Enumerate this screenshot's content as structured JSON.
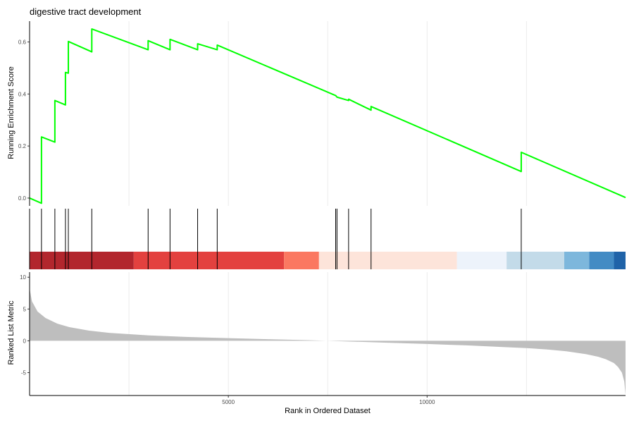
{
  "chart_data": {
    "type": "line",
    "title": "digestive tract development",
    "xlabel": "Rank in Ordered Dataset",
    "x_range": [
      0,
      14992
    ],
    "x_ticks": [
      5000,
      10000
    ],
    "x_tick_labels": [
      "5000",
      "10000"
    ],
    "running_es": {
      "ylabel": "Running Enrichment Score",
      "ylim": [
        -0.03,
        0.68
      ],
      "y_ticks": [
        0.0,
        0.2,
        0.4,
        0.6
      ],
      "y_tick_labels": [
        "0.0",
        "0.2",
        "0.4",
        "0.6"
      ],
      "color": "#00ff00",
      "x": [
        0,
        299,
        299,
        636,
        636,
        902,
        902,
        975,
        975,
        1565,
        1565,
        2982,
        2982,
        3533,
        3533,
        4227,
        4227,
        4720,
        4720,
        7700,
        7700,
        7733,
        7733,
        8025,
        8025,
        8590,
        8590,
        12368,
        12368,
        14992
      ],
      "y": [
        0.0,
        -0.02,
        0.235,
        0.215,
        0.375,
        0.358,
        0.483,
        0.48,
        0.602,
        0.562,
        0.65,
        0.57,
        0.605,
        0.57,
        0.61,
        0.57,
        0.593,
        0.57,
        0.588,
        0.394,
        0.394,
        0.388,
        0.388,
        0.375,
        0.38,
        0.338,
        0.352,
        0.102,
        0.176,
        0.002
      ]
    },
    "gene_hits": [
      299,
      636,
      902,
      975,
      1565,
      2982,
      3533,
      4227,
      4720,
      7700,
      7733,
      8025,
      8590,
      12368
    ],
    "rank_color_bands": [
      {
        "from": 0,
        "to": 2620,
        "color": "#b2262d"
      },
      {
        "from": 2620,
        "to": 6400,
        "color": "#e3413f"
      },
      {
        "from": 6400,
        "to": 7280,
        "color": "#fb7861"
      },
      {
        "from": 7280,
        "to": 10750,
        "color": "#fde4da"
      },
      {
        "from": 10750,
        "to": 12000,
        "color": "#edf3fb"
      },
      {
        "from": 12000,
        "to": 13450,
        "color": "#c3dbe9"
      },
      {
        "from": 13450,
        "to": 14080,
        "color": "#7db7dc"
      },
      {
        "from": 14080,
        "to": 14700,
        "color": "#438bc4"
      },
      {
        "from": 14700,
        "to": 14992,
        "color": "#2063a8"
      }
    ],
    "ranked_metric": {
      "ylabel": "Ranked List Metric",
      "ylim": [
        -8.6,
        10.8
      ],
      "y_ticks": [
        -5,
        0,
        5,
        10
      ],
      "y_tick_labels": [
        "-5",
        "0",
        "5",
        "10"
      ],
      "fill_color": "#bebebe",
      "x": [
        0,
        60,
        200,
        400,
        700,
        1000,
        1500,
        2000,
        3000,
        4000,
        5000,
        6000,
        7000,
        7400,
        7600,
        8000,
        9000,
        10000,
        11000,
        12000,
        12500,
        13000,
        13500,
        14000,
        14300,
        14500,
        14700,
        14800,
        14900,
        14960,
        14992
      ],
      "y": [
        8.2,
        6.2,
        4.6,
        3.6,
        2.7,
        2.15,
        1.6,
        1.25,
        0.85,
        0.6,
        0.42,
        0.25,
        0.1,
        0.02,
        -0.02,
        -0.1,
        -0.3,
        -0.5,
        -0.72,
        -1.0,
        -1.15,
        -1.35,
        -1.65,
        -2.1,
        -2.5,
        -2.9,
        -3.5,
        -4.1,
        -5.0,
        -6.4,
        -8.5
      ]
    },
    "grid": true,
    "legend": "none"
  }
}
